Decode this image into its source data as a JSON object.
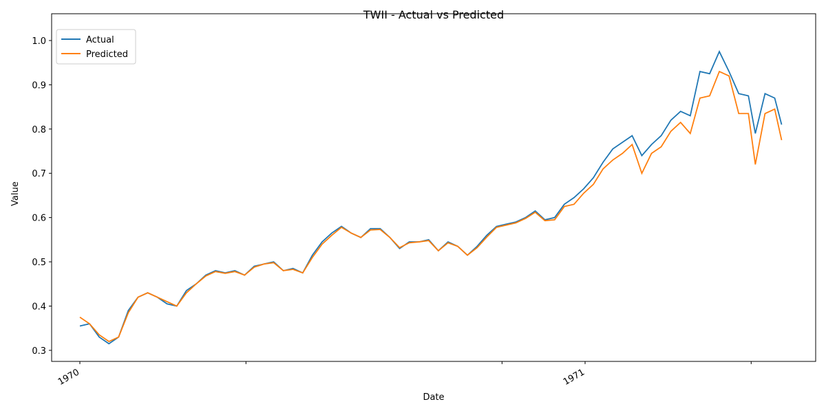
{
  "chart_data": {
    "type": "line",
    "title": "TWII - Actual vs Predicted",
    "x_label": "Date",
    "y_label": "Value",
    "x": [
      0,
      7,
      14,
      21,
      28,
      35,
      42,
      49,
      56,
      63,
      70,
      77,
      84,
      91,
      98,
      105,
      112,
      119,
      126,
      133,
      140,
      147,
      154,
      161,
      168,
      175,
      182,
      189,
      196,
      203,
      210,
      217,
      224,
      231,
      238,
      245,
      252,
      259,
      266,
      273,
      280,
      287,
      294,
      301,
      308,
      315,
      322,
      329,
      336,
      343,
      350,
      357,
      364,
      371,
      378,
      385,
      392,
      399,
      406,
      413,
      420,
      427,
      434,
      441,
      448,
      455,
      462,
      469,
      476,
      483,
      488,
      495,
      502,
      507
    ],
    "series": [
      {
        "name": "Actual",
        "color": "#1f77b4",
        "values": [
          0.355,
          0.36,
          0.33,
          0.315,
          0.33,
          0.39,
          0.42,
          0.43,
          0.42,
          0.405,
          0.4,
          0.435,
          0.45,
          0.47,
          0.48,
          0.475,
          0.48,
          0.47,
          0.49,
          0.495,
          0.5,
          0.48,
          0.485,
          0.475,
          0.515,
          0.545,
          0.565,
          0.58,
          0.565,
          0.555,
          0.575,
          0.575,
          0.555,
          0.53,
          0.545,
          0.545,
          0.55,
          0.525,
          0.545,
          0.535,
          0.515,
          0.535,
          0.56,
          0.58,
          0.585,
          0.59,
          0.6,
          0.615,
          0.595,
          0.6,
          0.63,
          0.645,
          0.665,
          0.69,
          0.725,
          0.755,
          0.77,
          0.785,
          0.74,
          0.765,
          0.785,
          0.82,
          0.84,
          0.83,
          0.93,
          0.925,
          0.975,
          0.93,
          0.88,
          0.875,
          0.79,
          0.88,
          0.87,
          0.81
        ]
      },
      {
        "name": "Predicted",
        "color": "#ff7f0e",
        "values": [
          0.375,
          0.36,
          0.335,
          0.32,
          0.33,
          0.385,
          0.42,
          0.43,
          0.42,
          0.41,
          0.4,
          0.43,
          0.45,
          0.468,
          0.478,
          0.474,
          0.478,
          0.47,
          0.488,
          0.495,
          0.498,
          0.48,
          0.483,
          0.475,
          0.51,
          0.54,
          0.56,
          0.578,
          0.565,
          0.555,
          0.572,
          0.573,
          0.555,
          0.532,
          0.543,
          0.545,
          0.548,
          0.525,
          0.543,
          0.535,
          0.515,
          0.532,
          0.556,
          0.578,
          0.583,
          0.588,
          0.598,
          0.612,
          0.593,
          0.595,
          0.625,
          0.63,
          0.655,
          0.675,
          0.71,
          0.73,
          0.745,
          0.765,
          0.7,
          0.745,
          0.76,
          0.795,
          0.815,
          0.79,
          0.87,
          0.875,
          0.93,
          0.92,
          0.835,
          0.835,
          0.72,
          0.835,
          0.845,
          0.775
        ]
      }
    ],
    "xlim": [
      -20.4,
      531.6
    ],
    "xticks": [
      {
        "value": 0,
        "label": "1970"
      },
      {
        "value": 120,
        "label": null
      },
      {
        "value": 305,
        "label": null
      },
      {
        "value": 365,
        "label": "1971"
      },
      {
        "value": 485,
        "label": null
      }
    ],
    "ylim": [
      0.275,
      1.0605
    ],
    "yticks": [
      0.3,
      0.4,
      0.5,
      0.6,
      0.7,
      0.8,
      0.9,
      {
        "value": 1,
        "label": "1.0"
      }
    ],
    "legend": "upper left",
    "grid": false
  }
}
